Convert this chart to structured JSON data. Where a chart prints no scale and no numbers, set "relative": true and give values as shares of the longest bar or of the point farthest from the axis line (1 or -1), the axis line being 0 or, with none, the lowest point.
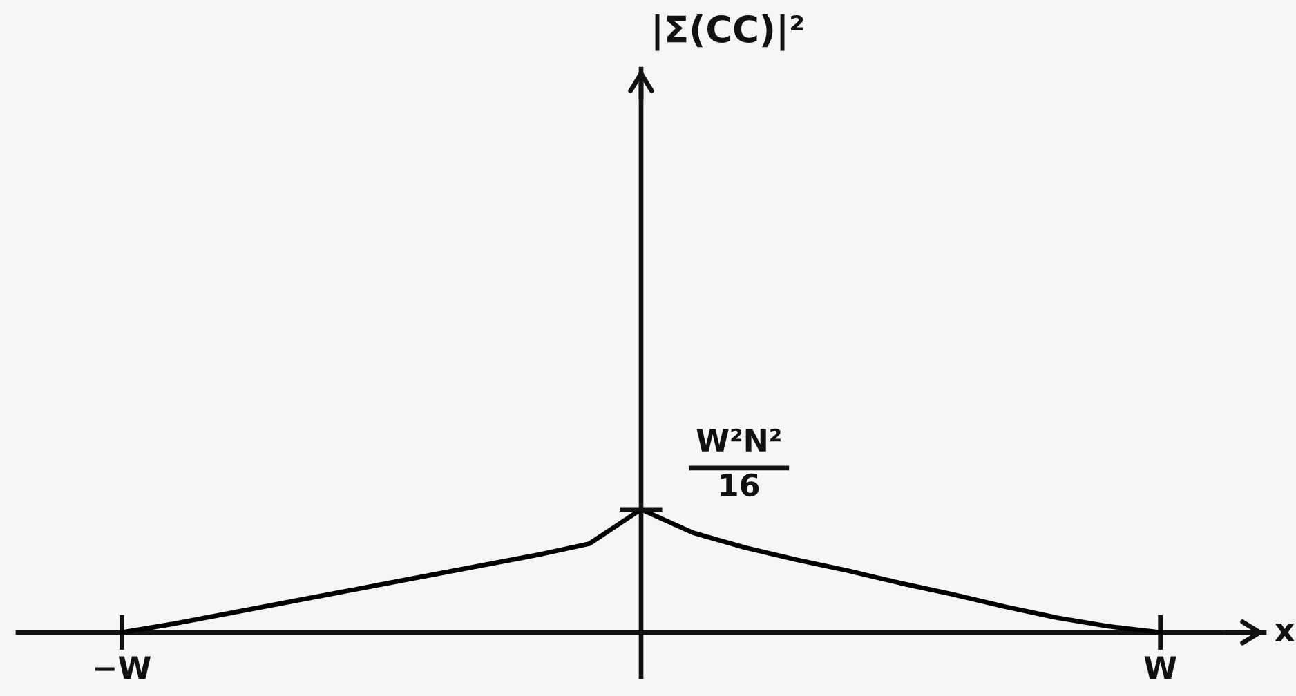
{
  "chart_data": {
    "type": "line",
    "relative": true,
    "xlabel": "x",
    "categories": [
      null,
      null,
      "−W",
      null,
      null,
      null,
      null,
      null,
      null,
      null,
      null,
      null,
      null,
      null,
      null,
      null,
      null,
      null,
      null,
      null,
      null,
      null,
      "W",
      null,
      null
    ],
    "series": [
      {
        "color": "#000000",
        "values": [
          null,
          null,
          0,
          0.07,
          0.15,
          0.23,
          0.31,
          0.39,
          0.47,
          0.55,
          0.63,
          0.72,
          1,
          0.81,
          0.69,
          0.59,
          0.5,
          0.4,
          0.31,
          0.21,
          0.12,
          0.05,
          0,
          null,
          null
        ]
      }
    ],
    "annotations": [
      "|Σ(CC)|²",
      "W²N²\n16"
    ]
  }
}
